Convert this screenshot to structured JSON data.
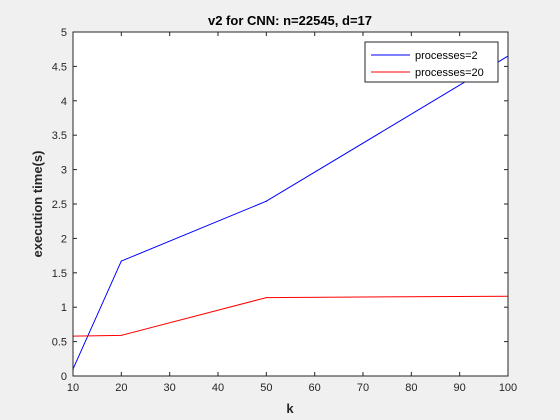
{
  "chart_data": {
    "type": "line",
    "title": "v2 for CNN: n=22545, d=17",
    "xlabel": "k",
    "ylabel": "execution time(s)",
    "xlim": [
      10,
      100
    ],
    "ylim": [
      0,
      5
    ],
    "xticks": [
      10,
      20,
      30,
      40,
      50,
      60,
      70,
      80,
      90,
      100
    ],
    "yticks": [
      0,
      0.5,
      1,
      1.5,
      2,
      2.5,
      3,
      3.5,
      4,
      4.5,
      5
    ],
    "x": [
      10,
      20,
      50,
      100
    ],
    "grid": false,
    "legend_position": "top-right",
    "series": [
      {
        "name": "processes=2",
        "color": "#0000ff",
        "values": [
          0.1,
          1.67,
          2.54,
          4.65
        ]
      },
      {
        "name": "processes=20",
        "color": "#ff0000",
        "values": [
          0.58,
          0.59,
          1.14,
          1.16
        ]
      }
    ]
  }
}
